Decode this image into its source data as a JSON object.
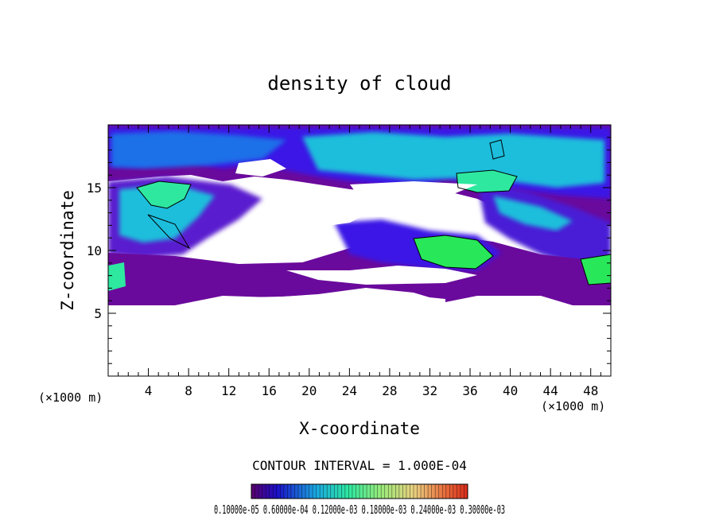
{
  "chart_data": {
    "type": "heatmap",
    "title": "density of cloud",
    "xlabel": "X-coordinate",
    "ylabel": "Z-coordinate",
    "x_unit": "(×1000 m)",
    "y_unit": "(×1000 m)",
    "xlim": [
      0,
      50
    ],
    "ylim": [
      0,
      20
    ],
    "x_ticks": [
      "4",
      "8",
      "12",
      "16",
      "20",
      "24",
      "28",
      "32",
      "36",
      "40",
      "44",
      "48"
    ],
    "y_ticks": [
      "5",
      "10",
      "15"
    ],
    "contour_interval_label": "CONTOUR INTERVAL = 1.000E-04",
    "colorbar_labels": "0.10000e-05 0.60000e-04 0.12000e-03 0.18000e-03 0.24000e-03 0.30000e-03",
    "colors": {
      "low": "#6a0a9c",
      "mid_low": "#3a18e6",
      "mid": "#1ebedc",
      "mid_high": "#2ee8b0",
      "high": "#28e85a"
    }
  }
}
